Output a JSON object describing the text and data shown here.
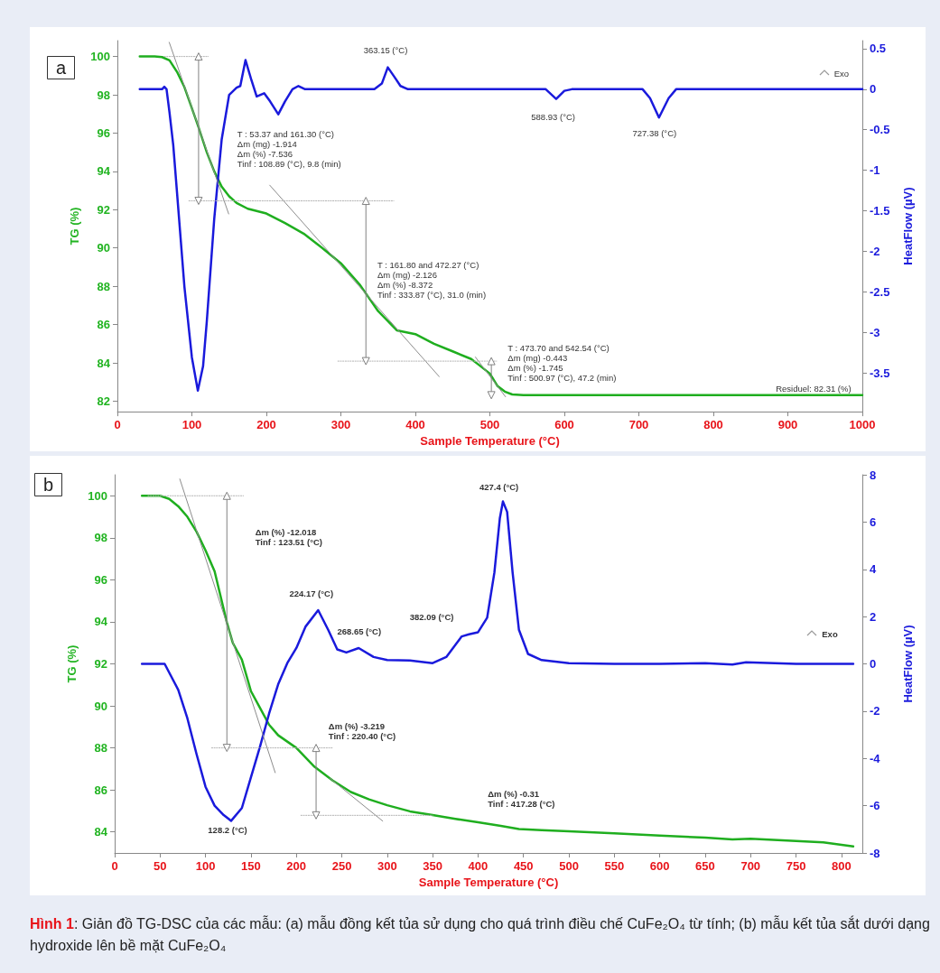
{
  "chart_data": [
    {
      "type": "line",
      "title": "a",
      "xlabel": "Sample Temperature (°C)",
      "ylabel": "TG (%)",
      "y2label": "HeatFlow (µV)",
      "xlim": [
        0,
        1000
      ],
      "xticks": [
        0,
        100,
        200,
        300,
        400,
        500,
        600,
        700,
        800,
        900,
        1000
      ],
      "ylim": [
        81.45,
        100.83
      ],
      "yticks": [
        82,
        84,
        86,
        88,
        90,
        92,
        94,
        96,
        98,
        100
      ],
      "y2lim": [
        -3.98,
        0.6
      ],
      "y2ticks": [
        -3.5,
        -3,
        -2.5,
        -2,
        -1.5,
        -1,
        -0.5,
        0,
        0.5
      ],
      "series": [
        {
          "color": "#1fae1f",
          "x": [
            30,
            50,
            60,
            70,
            80,
            90,
            100,
            109,
            120,
            130,
            140,
            150,
            160,
            175,
            200,
            225,
            250,
            275,
            300,
            325,
            334,
            350,
            375,
            400,
            425,
            450,
            475,
            485,
            500,
            510,
            520,
            530,
            545,
            600,
            700,
            800,
            900,
            1000
          ],
          "values": [
            100,
            100,
            99.97,
            99.8,
            99.2,
            98.4,
            97.3,
            96.3,
            95,
            94,
            93.2,
            92.7,
            92.35,
            92.05,
            91.8,
            91.3,
            90.75,
            90,
            89.2,
            88.1,
            87.6,
            86.7,
            85.7,
            85.5,
            85,
            84.6,
            84.2,
            83.9,
            83.44,
            82.8,
            82.5,
            82.35,
            82.31,
            82.31,
            82.31,
            82.31,
            82.31,
            82.31
          ]
        },
        {
          "color": "#1a1adc",
          "axis": "y2",
          "x": [
            30,
            60,
            63,
            66,
            70,
            75,
            80,
            90,
            100,
            108,
            115,
            120,
            130,
            140,
            150,
            160,
            165,
            172,
            180,
            187,
            197,
            205,
            216,
            225,
            235,
            243,
            252,
            345,
            355,
            363,
            372,
            380,
            390,
            575,
            589,
            600,
            610,
            705,
            715,
            727,
            740,
            750,
            1000
          ],
          "values": [
            0,
            0,
            0.03,
            0,
            -0.29,
            -0.69,
            -1.27,
            -2.44,
            -3.31,
            -3.72,
            -3.42,
            -2.87,
            -1.6,
            -0.62,
            -0.07,
            0.02,
            0.04,
            0.36,
            0.11,
            -0.09,
            -0.05,
            -0.15,
            -0.31,
            -0.15,
            0,
            0.04,
            0,
            0,
            0.07,
            0.27,
            0.15,
            0.04,
            0,
            0,
            -0.12,
            -0.02,
            0,
            0,
            -0.11,
            -0.35,
            -0.11,
            0,
            0
          ]
        },
        {
          "color": "#8c8c8c",
          "x": [
            69.6,
            149.4
          ],
          "values": [
            100.74,
            91.78
          ]
        },
        {
          "color": "#8c8c8c",
          "x": [
            204.5,
            432
          ],
          "values": [
            93.28,
            83.28
          ]
        },
        {
          "color": "#8c8c8c",
          "x": [
            480.6,
            521
          ],
          "values": [
            84.3,
            82.23
          ]
        },
        {
          "color": "#b4b4b4",
          "line_style": "dotted",
          "x": [
            63,
            122
          ],
          "values": [
            100,
            100
          ]
        },
        {
          "color": "#b4b4b4",
          "line_style": "dotted",
          "x": [
            96,
            371
          ],
          "values": [
            92.46,
            92.46
          ]
        },
        {
          "color": "#b4b4b4",
          "line_style": "dotted",
          "x": [
            296,
            509
          ],
          "values": [
            84.09,
            84.09
          ]
        },
        {
          "color": "#808080",
          "marker": "triangle",
          "x": [
            109,
            109
          ],
          "values": [
            100,
            92.46
          ]
        },
        {
          "color": "#808080",
          "marker": "triangle",
          "x": [
            333.6,
            333.6
          ],
          "values": [
            92.46,
            84.09
          ]
        },
        {
          "color": "#808080",
          "marker": "triangle",
          "x": [
            502,
            502
          ],
          "values": [
            84.09,
            82.31
          ]
        }
      ],
      "annotations": [
        "T : 53.37 and 161.30 (°C)\nΔm (mg) -1.914\nΔm (%) -7.536\nTinf : 108.89 (°C), 9.8 (min)",
        "T : 161.80 and 472.27 (°C)\nΔm (mg) -2.126\nΔm (%) -8.372\nTinf : 333.87 (°C), 31.0 (min)",
        "T : 473.70 and 542.54 (°C)\nΔm (mg) -0.443\nΔm (%) -1.745\nTinf : 500.97 (°C), 47.2 (min)",
        "363.15 (°C)",
        "588.93 (°C)",
        "727.38 (°C)",
        "Exo",
        "Residuel: 82.31 (%)"
      ]
    },
    {
      "type": "line",
      "title": "b",
      "xlabel": "Sample Temperature (°C)",
      "ylabel": "TG (%)",
      "y2label": "HeatFlow (µV)",
      "xlim": [
        0,
        823
      ],
      "xticks": [
        0,
        50,
        100,
        150,
        200,
        250,
        300,
        350,
        400,
        450,
        500,
        550,
        600,
        650,
        700,
        750,
        800
      ],
      "ylim": [
        83,
        101
      ],
      "yticks": [
        84,
        86,
        88,
        90,
        92,
        94,
        96,
        98,
        100
      ],
      "y2lim": [
        -8,
        8
      ],
      "y2ticks": [
        -8,
        -6,
        -4,
        -2,
        0,
        2,
        4,
        6,
        8
      ],
      "series": [
        {
          "color": "#1fae1f",
          "x": [
            30,
            50,
            60,
            70,
            80,
            90,
            100,
            110,
            123.5,
            130,
            140,
            150,
            160,
            170,
            180,
            190,
            200,
            220,
            240,
            260,
            280,
            300,
            325,
            350,
            375,
            400,
            425,
            445,
            470,
            500,
            550,
            600,
            650,
            680,
            700,
            750,
            780,
            813
          ],
          "values": [
            100,
            100,
            99.85,
            99.5,
            99,
            98.3,
            97.4,
            96.4,
            93.97,
            93,
            92.2,
            90.7,
            89.9,
            89.1,
            88.6,
            88.3,
            88,
            87.1,
            86.45,
            85.9,
            85.55,
            85.27,
            84.98,
            84.8,
            84.62,
            84.46,
            84.29,
            84.14,
            84.09,
            84.03,
            83.93,
            83.83,
            83.73,
            83.64,
            83.68,
            83.57,
            83.5,
            83.31
          ]
        },
        {
          "color": "#1a1adc",
          "axis": "y2",
          "x": [
            30,
            55,
            70,
            80,
            90,
            100,
            110,
            120,
            128.2,
            140,
            150,
            160,
            170,
            180,
            190,
            200,
            210,
            224,
            235,
            245,
            255,
            268.6,
            285,
            300,
            325,
            350,
            365,
            375,
            382,
            390,
            400,
            410,
            418,
            424,
            427.4,
            432,
            438,
            445,
            455,
            470,
            500,
            550,
            600,
            650,
            680,
            695,
            750,
            813
          ],
          "values": [
            0,
            0,
            -1.1,
            -2.3,
            -3.8,
            -5.2,
            -6,
            -6.4,
            -6.64,
            -6.1,
            -4.8,
            -3.5,
            -2.1,
            -0.86,
            0.03,
            0.67,
            1.57,
            2.27,
            1.44,
            0.61,
            0.48,
            0.67,
            0.29,
            0.16,
            0.14,
            0.03,
            0.29,
            0.8,
            1.16,
            1.25,
            1.34,
            1.95,
            3.87,
            6.17,
            6.87,
            6.43,
            3.87,
            1.44,
            0.42,
            0.16,
            0.03,
            0,
            0,
            0.03,
            -0.03,
            0.07,
            0,
            0
          ]
        },
        {
          "color": "#8c8c8c",
          "x": [
            71.7,
            176.7
          ],
          "values": [
            100.8,
            86.82
          ]
        },
        {
          "color": "#8c8c8c",
          "x": [
            236.7,
            295
          ],
          "values": [
            86.56,
            84.52
          ]
        },
        {
          "color": "#b4b4b4",
          "line_style": "dotted",
          "x": [
            36.7,
            141.7
          ],
          "values": [
            100,
            100
          ]
        },
        {
          "color": "#b4b4b4",
          "line_style": "dotted",
          "x": [
            106.7,
            240
          ],
          "values": [
            88,
            88
          ]
        },
        {
          "color": "#b4b4b4",
          "line_style": "dotted",
          "x": [
            205,
            350
          ],
          "values": [
            84.79,
            84.79
          ]
        },
        {
          "color": "#808080",
          "marker": "triangle",
          "x": [
            123.5,
            123.5
          ],
          "values": [
            100,
            88
          ]
        },
        {
          "color": "#808080",
          "marker": "triangle",
          "x": [
            221.7,
            221.7
          ],
          "values": [
            88,
            84.79
          ]
        }
      ],
      "annotations": [
        "Δm (%) -12.018\nTinf : 123.51 (°C)",
        "Δm (%) -3.219\nTinf : 220.40 (°C)",
        "Δm (%) -0.31\nTinf : 417.28 (°C)",
        "128.2 (°C)",
        "224.17 (°C)",
        "268.65 (°C)",
        "382.09 (°C)",
        "427.4 (°C)",
        "Exo",
        "Hình 1: Giản đồ TG-DSC của các mẫu: (a) mẫu đồng kết tủa sử dụng cho quá trình điều chế CuFe₂O₄ từ tính; (b) mẫu kết tủa sắt dưới dạng hydroxide lên bề mặt CuFe₂O₄"
      ]
    }
  ]
}
